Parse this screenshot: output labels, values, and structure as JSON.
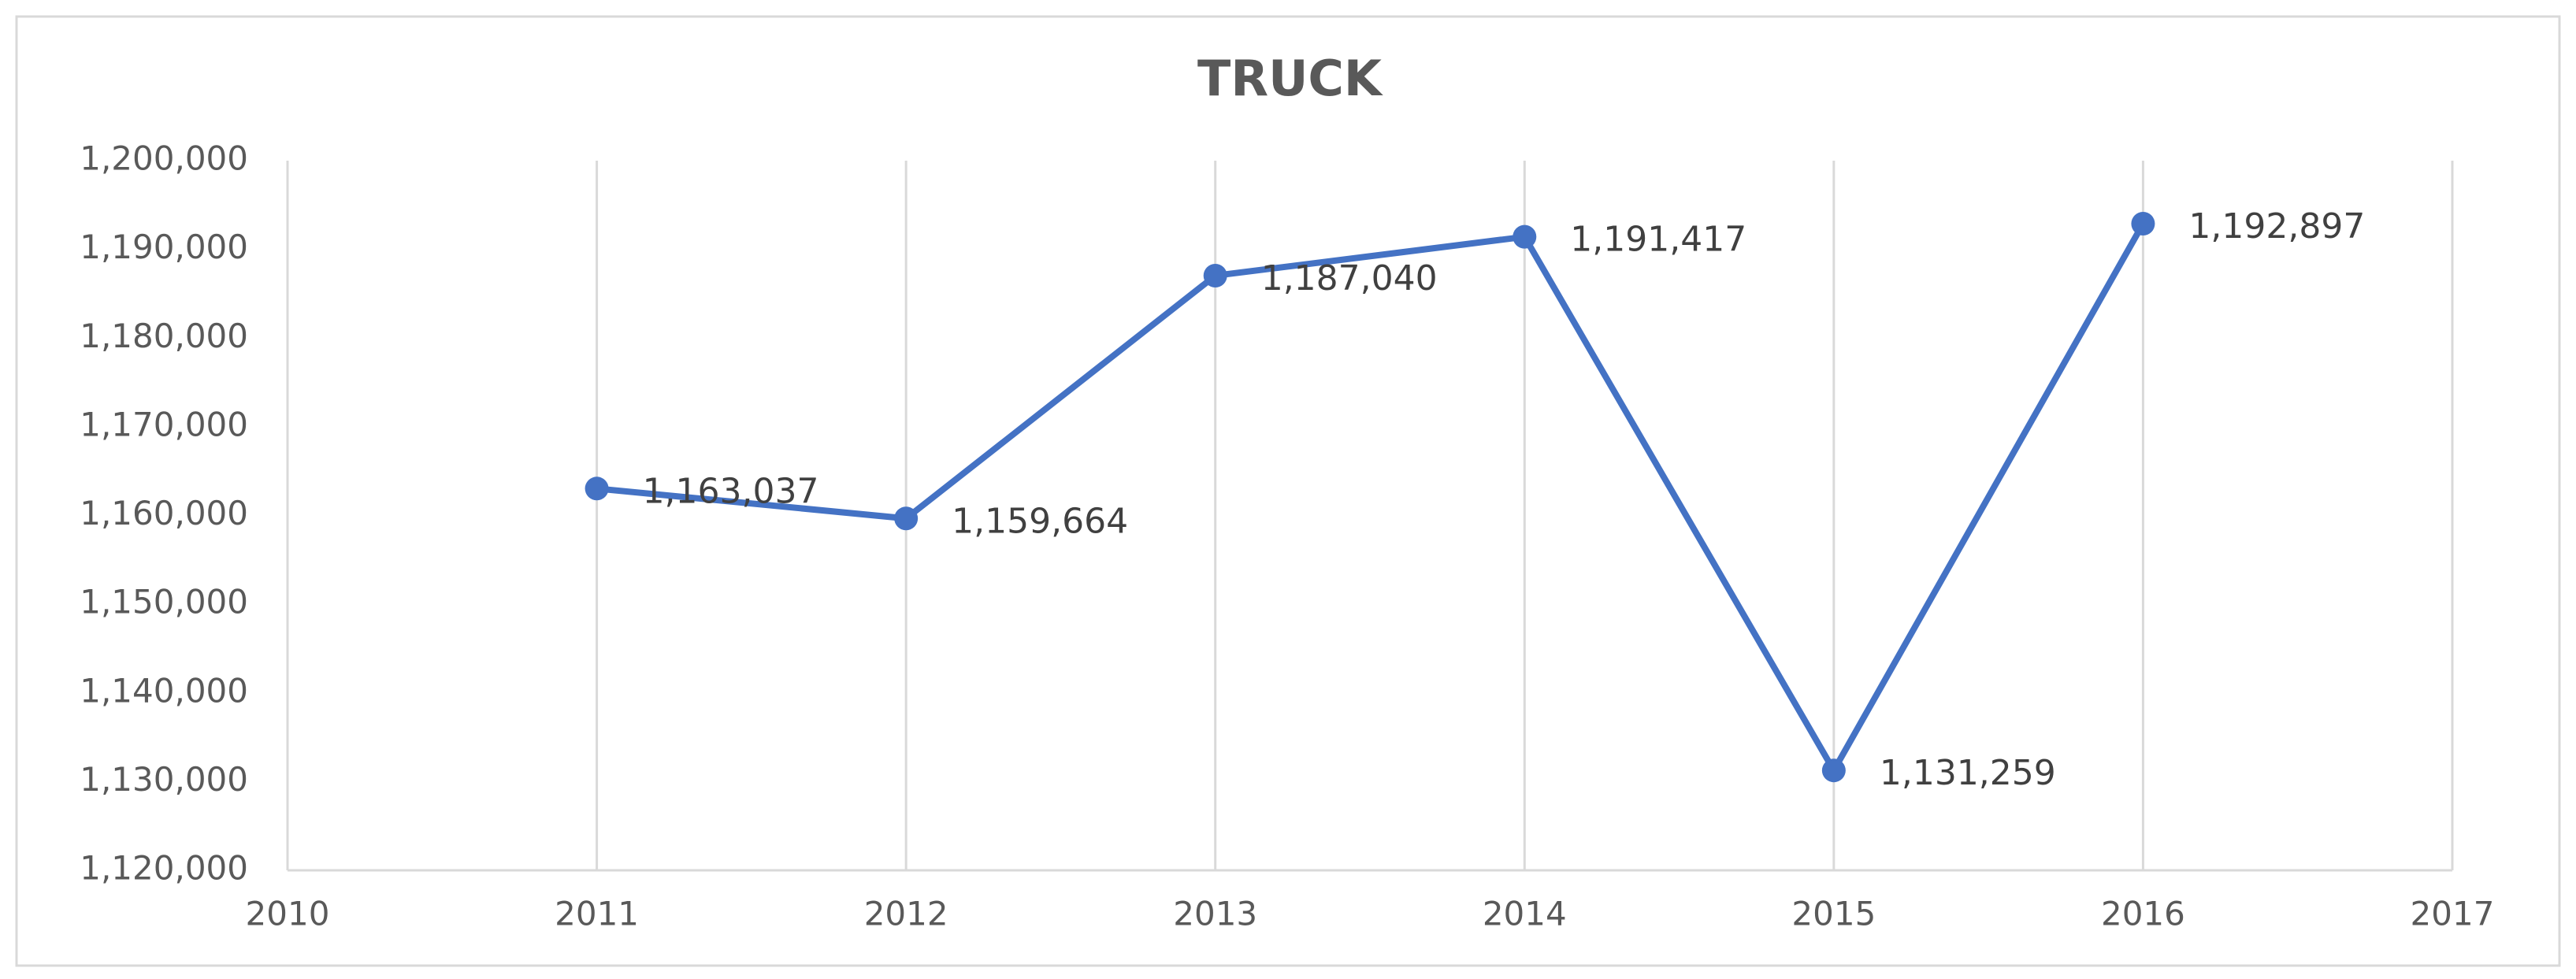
{
  "chart_data": {
    "type": "line",
    "title": "TRUCK",
    "x": [
      2011,
      2012,
      2013,
      2014,
      2015,
      2016
    ],
    "series": [
      {
        "name": "TRUCK",
        "color": "#4472c4",
        "values": [
          1163037,
          1159664,
          1187040,
          1191417,
          1131259,
          1192897
        ],
        "value_labels": [
          "1,163,037",
          "1,159,664",
          "1,187,040",
          "1,191,417",
          "1,131,259",
          "1,192,897"
        ]
      }
    ],
    "xlim": [
      2010,
      2017
    ],
    "xticks": [
      2010,
      2011,
      2012,
      2013,
      2014,
      2015,
      2016,
      2017
    ],
    "ylim": [
      1120000,
      1200000
    ],
    "yticks": [
      {
        "value": 1120000,
        "label": "1,120,000"
      },
      {
        "value": 1130000,
        "label": "1,130,000"
      },
      {
        "value": 1140000,
        "label": "1,140,000"
      },
      {
        "value": 1150000,
        "label": "1,150,000"
      },
      {
        "value": 1160000,
        "label": "1,160,000"
      },
      {
        "value": 1170000,
        "label": "1,170,000"
      },
      {
        "value": 1180000,
        "label": "1,180,000"
      },
      {
        "value": 1190000,
        "label": "1,190,000"
      },
      {
        "value": 1200000,
        "label": "1,200,000"
      }
    ],
    "grid": true
  }
}
